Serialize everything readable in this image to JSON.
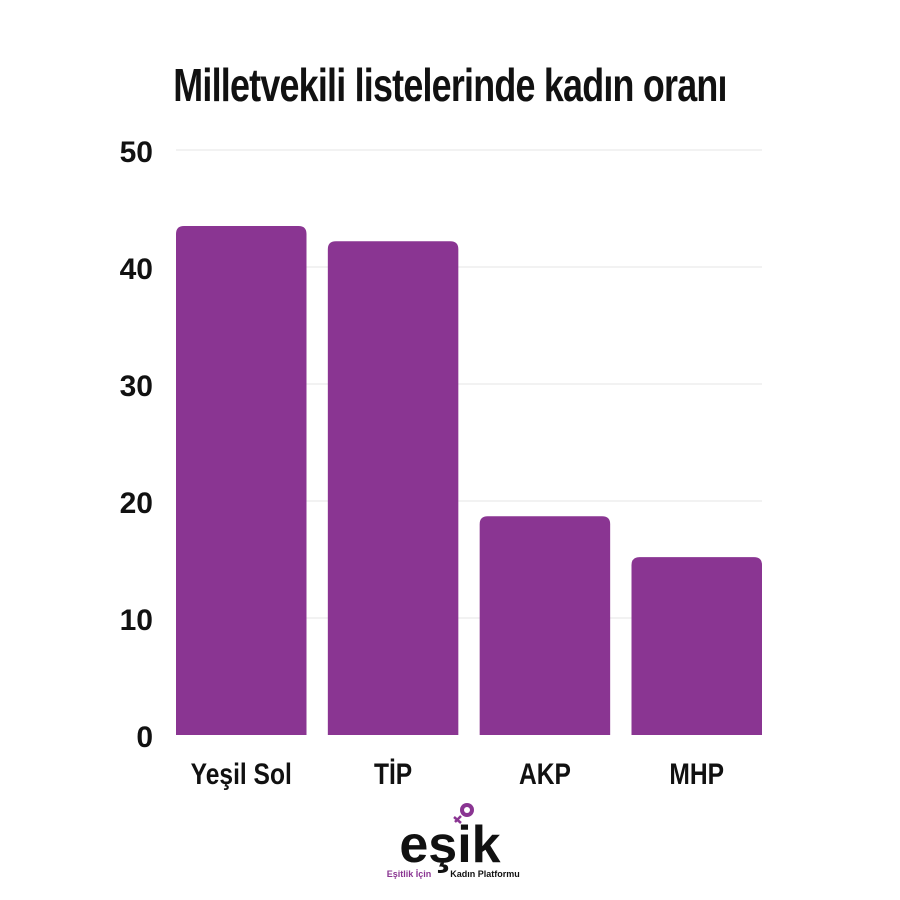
{
  "chart_data": {
    "type": "bar",
    "title": "Milletvekili listelerinde kadın oranı",
    "categories": [
      "Yeşil Sol",
      "TİP",
      "AKP",
      "MHP"
    ],
    "values": [
      43.5,
      42.2,
      18.7,
      15.2
    ],
    "ylim": [
      0,
      50
    ],
    "yticks": [
      0,
      10,
      20,
      30,
      40,
      50
    ],
    "grid": true,
    "bar_color": "#8a3592",
    "xlabel": "",
    "ylabel": ""
  },
  "logo": {
    "wordmark": "eşik",
    "tagline_left": "Eşitlik İçin",
    "tagline_right": "Kadın Platformu",
    "accent_color": "#8a3592"
  }
}
